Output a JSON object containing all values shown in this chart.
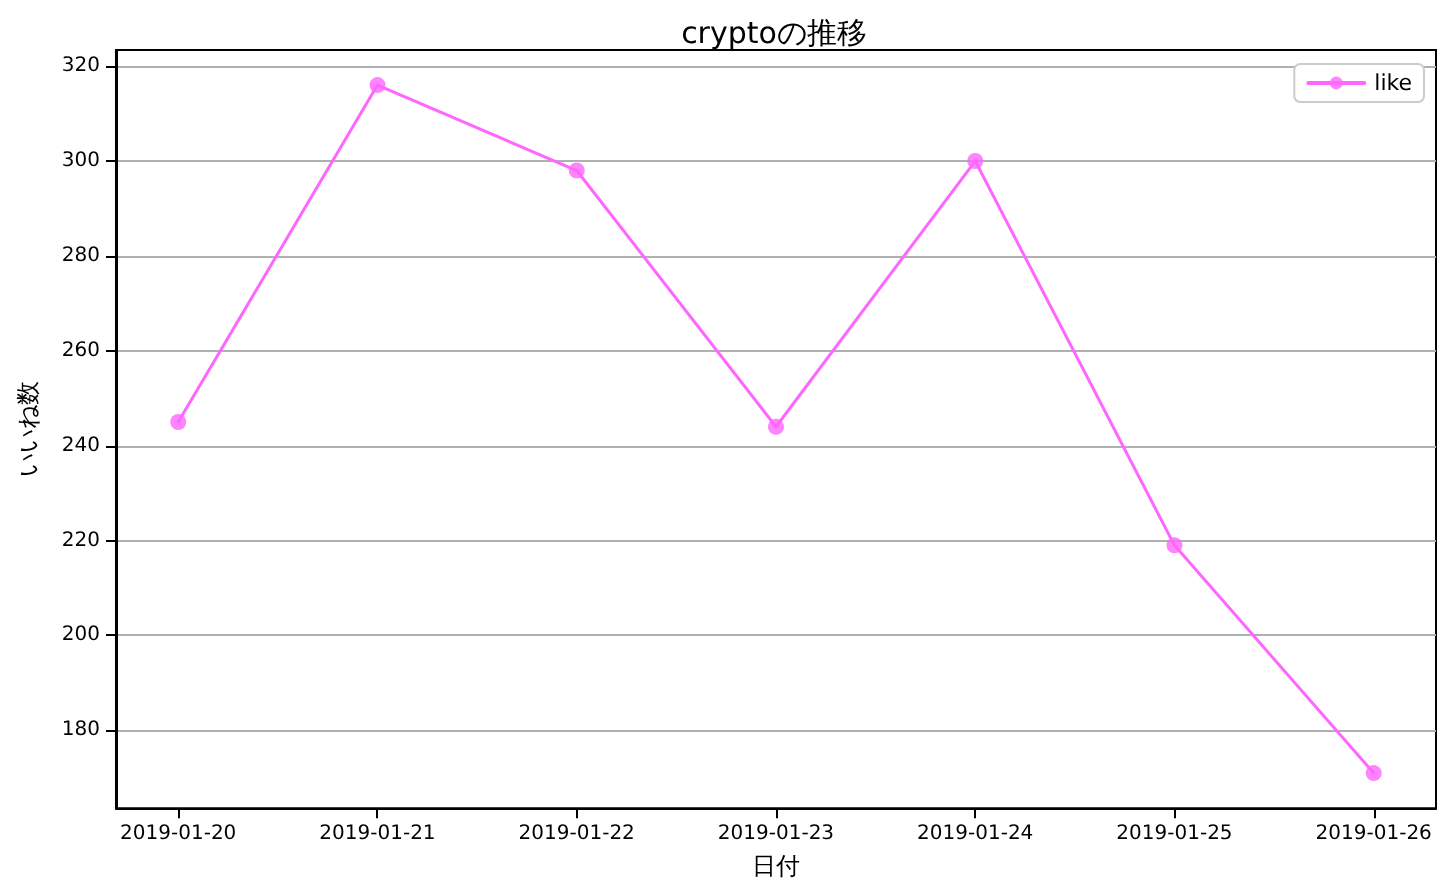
{
  "chart_data": {
    "type": "line",
    "title": "cryptoの推移",
    "xlabel": "日付",
    "ylabel": "いいね数",
    "x": [
      "2019-01-20",
      "2019-01-21",
      "2019-01-22",
      "2019-01-23",
      "2019-01-24",
      "2019-01-25",
      "2019-01-26"
    ],
    "series": [
      {
        "name": "like",
        "color": "#ff66ff",
        "values": [
          245,
          316,
          298,
          244,
          300,
          219,
          171
        ]
      }
    ],
    "xlim": [
      "2019-01-19T16:30",
      "2019-01-26T07:30"
    ],
    "xticks": [
      "2019-01-20",
      "2019-01-21",
      "2019-01-22",
      "2019-01-23",
      "2019-01-24",
      "2019-01-25",
      "2019-01-26"
    ],
    "ylim": [
      163.6,
      323.4
    ],
    "yticks": [
      180,
      200,
      220,
      240,
      260,
      280,
      300,
      320
    ],
    "grid": "y",
    "legend": "top right",
    "marker": "circle",
    "line_style": "solid"
  }
}
